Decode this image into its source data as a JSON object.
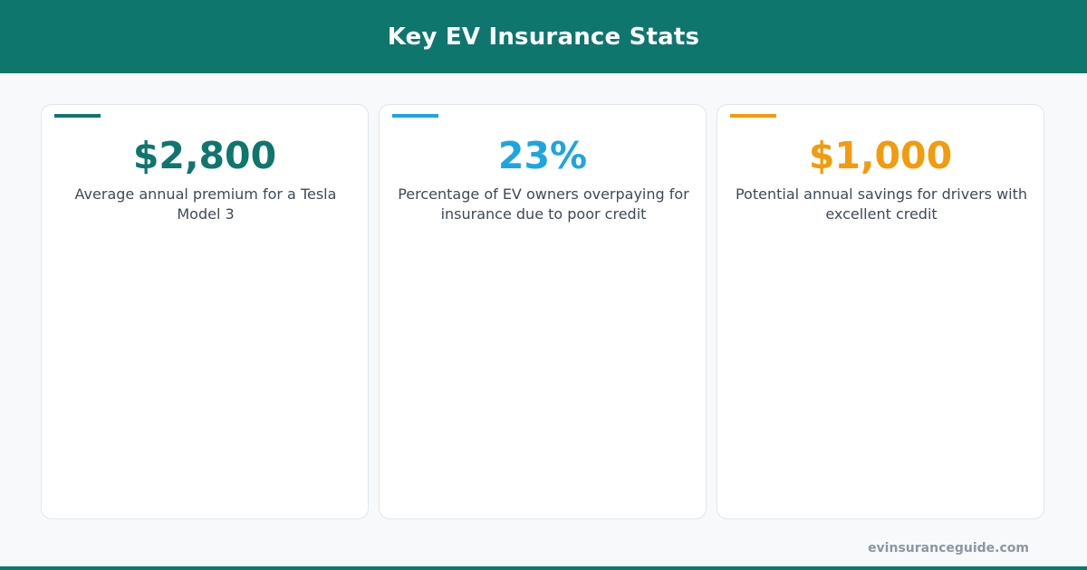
{
  "header": {
    "title": "Key EV Insurance Stats"
  },
  "colors": {
    "header_bg": "#0f766e",
    "accent_teal": "#0f766e",
    "accent_blue": "#1ea5e0",
    "accent_amber": "#f29b0c"
  },
  "stats": [
    {
      "value": "$2,800",
      "description": "Average annual premium for a Tesla Model 3",
      "color": "#0f766e"
    },
    {
      "value": "23%",
      "description": "Percentage of EV owners overpaying for insurance due to poor credit",
      "color": "#1ea5e0"
    },
    {
      "value": "$1,000",
      "description": "Potential annual savings for drivers with excellent credit",
      "color": "#f29b0c"
    }
  ],
  "footer": {
    "site": "evinsuranceguide.com"
  }
}
